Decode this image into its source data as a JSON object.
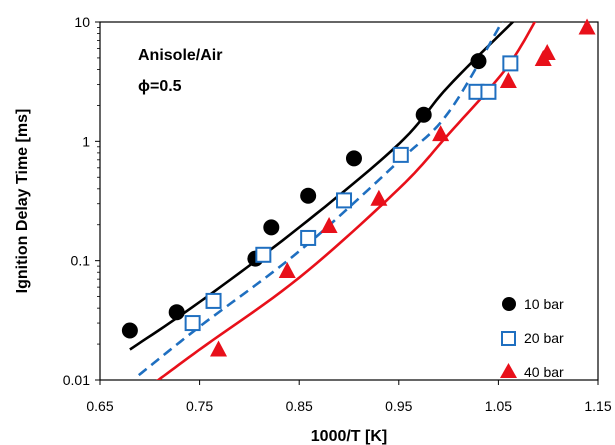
{
  "chart_data": {
    "type": "scatter",
    "xlabel": "1000/T [K]",
    "ylabel": "Ignition Delay Time [ms]",
    "xlim": [
      0.65,
      1.15
    ],
    "ylim": [
      0.01,
      10
    ],
    "y_scale": "log",
    "x_ticks": [
      "0.65",
      "0.75",
      "0.85",
      "0.95",
      "1.05",
      "1.15"
    ],
    "y_ticks": [
      "0.01",
      "0.1",
      "1",
      "10"
    ],
    "annotations": [
      "Anisole/Air",
      "ϕ=0.5"
    ],
    "legend_position": "bottom-right",
    "series": [
      {
        "name": "10 bar",
        "marker": "circle",
        "color": "#000000",
        "points": [
          [
            0.68,
            0.026
          ],
          [
            0.727,
            0.037
          ],
          [
            0.806,
            0.104
          ],
          [
            0.822,
            0.19
          ],
          [
            0.859,
            0.35
          ],
          [
            0.905,
            0.72
          ],
          [
            0.975,
            1.67
          ],
          [
            1.03,
            4.7
          ]
        ]
      },
      {
        "name": "20 bar",
        "marker": "square-open",
        "color": "#1f6fc0",
        "points": [
          [
            0.743,
            0.03
          ],
          [
            0.764,
            0.046
          ],
          [
            0.814,
            0.112
          ],
          [
            0.859,
            0.155
          ],
          [
            0.895,
            0.32
          ],
          [
            0.952,
            0.77
          ],
          [
            1.028,
            2.6
          ],
          [
            1.04,
            2.6
          ],
          [
            1.062,
            4.5
          ]
        ]
      },
      {
        "name": "40 bar",
        "marker": "triangle",
        "color": "#e8101a",
        "points": [
          [
            0.769,
            0.018
          ],
          [
            0.838,
            0.082
          ],
          [
            0.88,
            0.195
          ],
          [
            0.93,
            0.33
          ],
          [
            0.992,
            1.15
          ],
          [
            1.06,
            3.2
          ],
          [
            1.095,
            4.9
          ],
          [
            1.099,
            5.5
          ],
          [
            1.139,
            9.0
          ]
        ]
      }
    ],
    "model_lines": [
      {
        "series": "10 bar",
        "color": "#000000",
        "dash": "solid",
        "points": [
          [
            0.68,
            0.018
          ],
          [
            0.75,
            0.045
          ],
          [
            0.85,
            0.19
          ],
          [
            0.95,
            0.95
          ],
          [
            1.0,
            2.9
          ],
          [
            1.067,
            10.5
          ]
        ]
      },
      {
        "series": "20 bar",
        "color": "#1f6fc0",
        "dash": "dashed",
        "points": [
          [
            0.689,
            0.011
          ],
          [
            0.75,
            0.028
          ],
          [
            0.85,
            0.12
          ],
          [
            0.95,
            0.68
          ],
          [
            1.0,
            1.75
          ],
          [
            1.055,
            10.5
          ]
        ]
      },
      {
        "series": "40 bar",
        "color": "#e8101a",
        "dash": "solid",
        "points": [
          [
            0.705,
            0.0095
          ],
          [
            0.75,
            0.018
          ],
          [
            0.85,
            0.072
          ],
          [
            0.95,
            0.4
          ],
          [
            1.0,
            1.15
          ],
          [
            1.057,
            4.0
          ],
          [
            1.088,
            10.5
          ]
        ]
      }
    ]
  }
}
